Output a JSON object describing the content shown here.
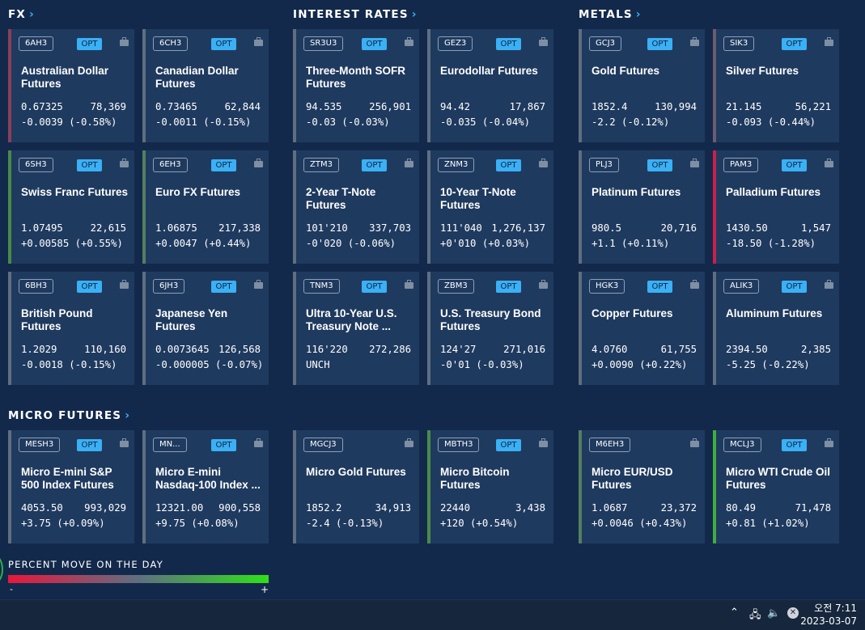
{
  "sections": {
    "fx": "FX",
    "interest_rates": "INTEREST RATES",
    "metals": "METALS",
    "micro_futures": "MICRO FUTURES"
  },
  "cards": [
    {
      "symbol": "6AH3",
      "opt": "OPT",
      "name": "Australian Dollar Futures",
      "price": "0.67325",
      "volume": "78,369",
      "change": "-0.0039 (-0.58%)",
      "accent": "#8a3f5a"
    },
    {
      "symbol": "6CH3",
      "opt": "OPT",
      "name": "Canadian Dollar Futures",
      "price": "0.73465",
      "volume": "62,844",
      "change": "-0.0011 (-0.15%)",
      "accent": "#5f6f80"
    },
    {
      "symbol": "SR3U3",
      "opt": "OPT",
      "name": "Three-Month SOFR Futures",
      "price": "94.535",
      "volume": "256,901",
      "change": "-0.03 (-0.03%)",
      "accent": "#5f6f80"
    },
    {
      "symbol": "GEZ3",
      "opt": "OPT",
      "name": "Eurodollar Futures",
      "price": "94.42",
      "volume": "17,867",
      "change": "-0.035 (-0.04%)",
      "accent": "#5f6f80"
    },
    {
      "symbol": "GCJ3",
      "opt": "OPT",
      "name": "Gold Futures",
      "price": "1852.4",
      "volume": "130,994",
      "change": "-2.2 (-0.12%)",
      "accent": "#5f6f80"
    },
    {
      "symbol": "SIK3",
      "opt": "OPT",
      "name": "Silver Futures",
      "price": "21.145",
      "volume": "56,221",
      "change": "-0.093 (-0.44%)",
      "accent": "#6e5a72"
    },
    {
      "symbol": "6SH3",
      "opt": "OPT",
      "name": "Swiss Franc Futures",
      "price": "1.07495",
      "volume": "22,615",
      "change": "+0.00585 (+0.55%)",
      "accent": "#4a8a4a"
    },
    {
      "symbol": "6EH3",
      "opt": "OPT",
      "name": "Euro FX Futures",
      "price": "1.06875",
      "volume": "217,338",
      "change": "+0.0047 (+0.44%)",
      "accent": "#557f60"
    },
    {
      "symbol": "ZTM3",
      "opt": "OPT",
      "name": "2-Year T-Note Futures",
      "price": "101'210",
      "volume": "337,703",
      "change": "-0'020 (-0.06%)",
      "accent": "#5f6f80"
    },
    {
      "symbol": "ZNM3",
      "opt": "OPT",
      "name": "10-Year T-Note Futures",
      "price": "111'040",
      "volume": "1,276,137",
      "change": "+0'010 (+0.03%)",
      "accent": "#5f6f80"
    },
    {
      "symbol": "PLJ3",
      "opt": "OPT",
      "name": "Platinum Futures",
      "price": "980.5",
      "volume": "20,716",
      "change": "+1.1 (+0.11%)",
      "accent": "#5f6f80"
    },
    {
      "symbol": "PAM3",
      "opt": "OPT",
      "name": "Palladium Futures",
      "price": "1430.50",
      "volume": "1,547",
      "change": "-18.50 (-1.28%)",
      "accent": "#c8204a"
    },
    {
      "symbol": "6BH3",
      "opt": "OPT",
      "name": "British Pound Futures",
      "price": "1.2029",
      "volume": "110,160",
      "change": "-0.0018 (-0.15%)",
      "accent": "#5f6f80"
    },
    {
      "symbol": "6JH3",
      "opt": "OPT",
      "name": "Japanese Yen Futures",
      "price": "0.0073645",
      "volume": "126,568",
      "change": "-0.000005 (-0.07%)",
      "accent": "#5f6f80"
    },
    {
      "symbol": "TNM3",
      "opt": "OPT",
      "name": "Ultra 10-Year U.S. Treasury Note ...",
      "price": "116'220",
      "volume": "272,286",
      "change": "UNCH",
      "accent": "#5f6f80"
    },
    {
      "symbol": "ZBM3",
      "opt": "OPT",
      "name": "U.S. Treasury Bond Futures",
      "price": "124'27",
      "volume": "271,016",
      "change": "-0'01 (-0.03%)",
      "accent": "#5f6f80"
    },
    {
      "symbol": "HGK3",
      "opt": "OPT",
      "name": "Copper Futures",
      "price": "4.0760",
      "volume": "61,755",
      "change": "+0.0090 (+0.22%)",
      "accent": "#5f6f80"
    },
    {
      "symbol": "ALIK3",
      "opt": "OPT",
      "name": "Aluminum Futures",
      "price": "2394.50",
      "volume": "2,385",
      "change": "-5.25 (-0.22%)",
      "accent": "#5f6f80"
    },
    {
      "symbol": "MESH3",
      "opt": "OPT",
      "name": "Micro E-mini S&P 500 Index Futures",
      "price": "4053.50",
      "volume": "993,029",
      "change": "+3.75 (+0.09%)",
      "accent": "#5f6f80"
    },
    {
      "symbol": "MN...",
      "opt": "OPT",
      "name": "Micro E-mini Nasdaq-100 Index ...",
      "price": "12321.00",
      "volume": "900,558",
      "change": "+9.75 (+0.08%)",
      "accent": "#5f6f80"
    },
    {
      "symbol": "MGCJ3",
      "opt": "",
      "name": "Micro Gold Futures",
      "price": "1852.2",
      "volume": "34,913",
      "change": "-2.4 (-0.13%)",
      "accent": "#5f6f80"
    },
    {
      "symbol": "MBTH3",
      "opt": "OPT",
      "name": "Micro Bitcoin Futures",
      "price": "22440",
      "volume": "3,438",
      "change": "+120 (+0.54%)",
      "accent": "#4a8a4a"
    },
    {
      "symbol": "M6EH3",
      "opt": "",
      "name": "Micro EUR/USD Futures",
      "price": "1.0687",
      "volume": "23,372",
      "change": "+0.0046 (+0.43%)",
      "accent": "#557f60"
    },
    {
      "symbol": "MCLJ3",
      "opt": "OPT",
      "name": "Micro WTI Crude Oil Futures",
      "price": "80.49",
      "volume": "71,478",
      "change": "+0.81 (+1.02%)",
      "accent": "#3fae3f"
    }
  ],
  "legend": {
    "title": "PERCENT MOVE ON THE DAY",
    "minus": "-",
    "plus": "+"
  },
  "taskbar": {
    "time": "오전 7:11",
    "date": "2023-03-07"
  },
  "colors": {
    "background": "#13294b",
    "card": "#1f3a5f",
    "opt_badge": "#3ab0f5",
    "negative": "#e8173c",
    "positive": "#2fe017"
  }
}
